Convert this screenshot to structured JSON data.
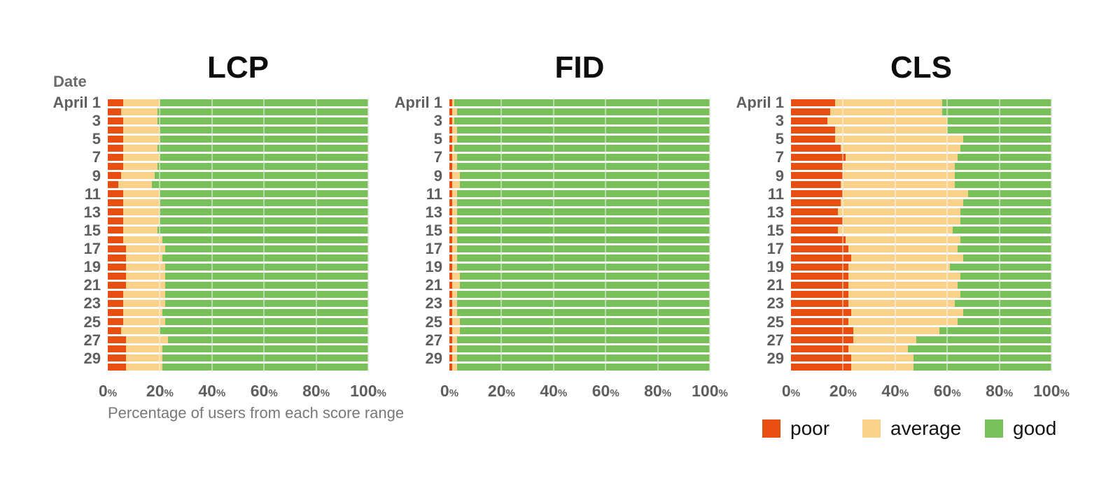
{
  "date_axis_label": "Date",
  "legend": [
    {
      "label": "poor",
      "color": "#e84e0f"
    },
    {
      "label": "average",
      "color": "#f9d189"
    },
    {
      "label": "good",
      "color": "#78c05a"
    }
  ],
  "colors": {
    "poor": "#e84e0f",
    "average": "#f9d189",
    "good": "#78c05a",
    "gridline": "#dcdcdc",
    "axis_text": "#5f5f5f",
    "title_text": "#0d0d0d"
  },
  "chart_data": [
    {
      "type": "bar",
      "stacked": true,
      "orientation": "horizontal",
      "title": "LCP",
      "xlabel": "Percentage of users from each score range",
      "xlim": [
        0,
        100
      ],
      "x_ticks": [
        "0%",
        "20%",
        "40%",
        "60%",
        "80%",
        "100%"
      ],
      "grid": true,
      "series_names": [
        "poor",
        "average",
        "good"
      ],
      "row_labels": [
        "April 1",
        "",
        "3",
        "",
        "5",
        "",
        "7",
        "",
        "9",
        "",
        "11",
        "",
        "13",
        "",
        "15",
        "",
        "17",
        "",
        "19",
        "",
        "21",
        "",
        "23",
        "",
        "25",
        "",
        "27",
        "",
        "29",
        ""
      ],
      "rows": [
        [
          6,
          14,
          80
        ],
        [
          5,
          14,
          81
        ],
        [
          6,
          13,
          81
        ],
        [
          6,
          14,
          80
        ],
        [
          6,
          14,
          80
        ],
        [
          6,
          13,
          81
        ],
        [
          6,
          14,
          80
        ],
        [
          6,
          13,
          81
        ],
        [
          5,
          13,
          82
        ],
        [
          4,
          13,
          83
        ],
        [
          6,
          14,
          80
        ],
        [
          6,
          14,
          80
        ],
        [
          6,
          14,
          80
        ],
        [
          6,
          14,
          80
        ],
        [
          6,
          13,
          81
        ],
        [
          6,
          15,
          79
        ],
        [
          7,
          15,
          78
        ],
        [
          7,
          14,
          79
        ],
        [
          7,
          15,
          78
        ],
        [
          7,
          15,
          78
        ],
        [
          7,
          15,
          78
        ],
        [
          6,
          16,
          78
        ],
        [
          6,
          16,
          78
        ],
        [
          6,
          15,
          79
        ],
        [
          6,
          16,
          78
        ],
        [
          5,
          15,
          80
        ],
        [
          7,
          16,
          77
        ],
        [
          7,
          14,
          79
        ],
        [
          7,
          14,
          79
        ],
        [
          7,
          14,
          79
        ]
      ]
    },
    {
      "type": "bar",
      "stacked": true,
      "orientation": "horizontal",
      "title": "FID",
      "xlabel": "",
      "xlim": [
        0,
        100
      ],
      "x_ticks": [
        "0%",
        "20%",
        "40%",
        "60%",
        "80%",
        "100%"
      ],
      "grid": true,
      "series_names": [
        "poor",
        "average",
        "good"
      ],
      "row_labels": [
        "April 1",
        "",
        "3",
        "",
        "5",
        "",
        "7",
        "",
        "9",
        "",
        "11",
        "",
        "13",
        "",
        "15",
        "",
        "17",
        "",
        "19",
        "",
        "21",
        "",
        "23",
        "",
        "25",
        "",
        "27",
        "",
        "29",
        ""
      ],
      "rows": [
        [
          1,
          1,
          98
        ],
        [
          1,
          2,
          97
        ],
        [
          1,
          1,
          98
        ],
        [
          1,
          2,
          97
        ],
        [
          1,
          2,
          97
        ],
        [
          1,
          1,
          98
        ],
        [
          1,
          2,
          97
        ],
        [
          1,
          2,
          97
        ],
        [
          1,
          3,
          96
        ],
        [
          1,
          3,
          96
        ],
        [
          1,
          2,
          97
        ],
        [
          1,
          2,
          97
        ],
        [
          1,
          2,
          97
        ],
        [
          1,
          2,
          97
        ],
        [
          1,
          2,
          97
        ],
        [
          1,
          2,
          97
        ],
        [
          1,
          2,
          97
        ],
        [
          1,
          2,
          97
        ],
        [
          1,
          2,
          97
        ],
        [
          1,
          3,
          96
        ],
        [
          1,
          3,
          96
        ],
        [
          1,
          2,
          97
        ],
        [
          1,
          2,
          97
        ],
        [
          1,
          2,
          97
        ],
        [
          1,
          3,
          96
        ],
        [
          1,
          3,
          96
        ],
        [
          1,
          2,
          97
        ],
        [
          1,
          2,
          97
        ],
        [
          1,
          2,
          97
        ],
        [
          1,
          2,
          97
        ]
      ]
    },
    {
      "type": "bar",
      "stacked": true,
      "orientation": "horizontal",
      "title": "CLS",
      "xlabel": "",
      "xlim": [
        0,
        100
      ],
      "x_ticks": [
        "0%",
        "20%",
        "40%",
        "60%",
        "80%",
        "100%"
      ],
      "grid": true,
      "series_names": [
        "poor",
        "average",
        "good"
      ],
      "row_labels": [
        "April 1",
        "",
        "3",
        "",
        "5",
        "",
        "7",
        "",
        "9",
        "",
        "11",
        "",
        "13",
        "",
        "15",
        "",
        "17",
        "",
        "19",
        "",
        "21",
        "",
        "23",
        "",
        "25",
        "",
        "27",
        "",
        "29",
        ""
      ],
      "rows": [
        [
          17,
          41,
          42
        ],
        [
          15,
          43,
          42
        ],
        [
          14,
          46,
          40
        ],
        [
          17,
          43,
          40
        ],
        [
          17,
          49,
          34
        ],
        [
          19,
          46,
          35
        ],
        [
          21,
          43,
          36
        ],
        [
          20,
          43,
          37
        ],
        [
          20,
          43,
          37
        ],
        [
          19,
          44,
          37
        ],
        [
          20,
          48,
          32
        ],
        [
          19,
          47,
          34
        ],
        [
          18,
          47,
          35
        ],
        [
          20,
          45,
          35
        ],
        [
          18,
          44,
          38
        ],
        [
          21,
          44,
          35
        ],
        [
          22,
          42,
          36
        ],
        [
          23,
          43,
          34
        ],
        [
          22,
          39,
          39
        ],
        [
          22,
          43,
          35
        ],
        [
          22,
          42,
          36
        ],
        [
          22,
          43,
          35
        ],
        [
          22,
          41,
          37
        ],
        [
          23,
          43,
          34
        ],
        [
          22,
          42,
          36
        ],
        [
          24,
          33,
          43
        ],
        [
          24,
          24,
          52
        ],
        [
          22,
          23,
          55
        ],
        [
          23,
          24,
          53
        ],
        [
          23,
          24,
          53
        ]
      ]
    }
  ]
}
